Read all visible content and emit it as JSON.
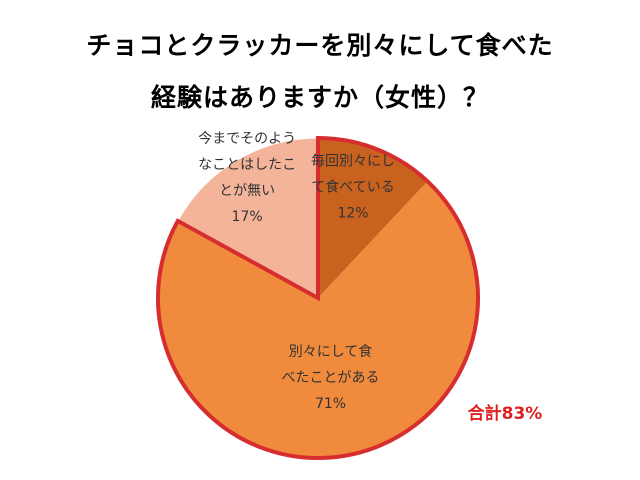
{
  "chart_data": {
    "type": "pie",
    "title_lines": [
      "チョコとクラッカーを別々にして食べた",
      "経験はありますか（女性）？"
    ],
    "categories": [
      "毎回別々にして食べている",
      "別々にして食べたことがある",
      "今までそのようなことはしたことが無い"
    ],
    "values": [
      12,
      71,
      17
    ],
    "value_labels": [
      "12%",
      "71%",
      "17%"
    ],
    "label_lines": [
      [
        "毎回別々にし",
        "て食べている"
      ],
      [
        "別々にして食",
        "べたことがある"
      ],
      [
        "今までそのよう",
        "なことはしたこ",
        "とが無い"
      ]
    ],
    "colors": [
      "#c8621e",
      "#f08a3c",
      "#f3b49a"
    ],
    "highlight_border_color": "#d62e2e",
    "annotation": "合計83%",
    "start": "12 o'clock, clockwise"
  }
}
